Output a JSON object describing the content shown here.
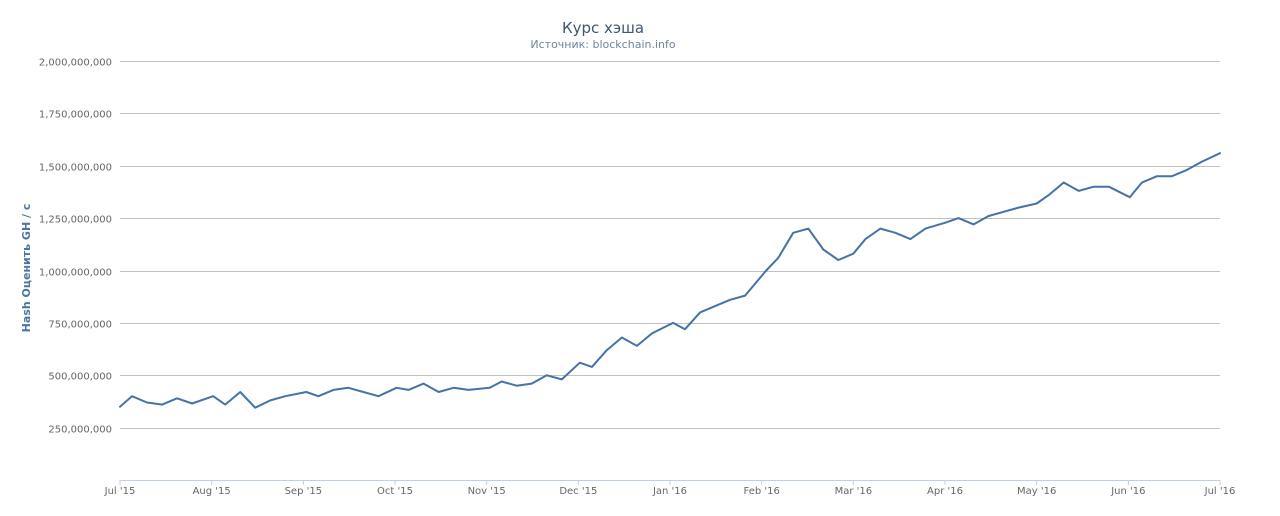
{
  "chart_data": {
    "type": "line",
    "title": "Курс хэша",
    "subtitle": "Источник: blockchain.info",
    "ylabel": "Hash Оценить GH / с",
    "xlabel": "",
    "ylim": [
      0,
      2000000000
    ],
    "y_ticks": [
      250000000,
      500000000,
      750000000,
      1000000000,
      1250000000,
      1500000000,
      1750000000,
      2000000000
    ],
    "y_tick_labels": [
      "250,000,000",
      "500,000,000",
      "750,000,000",
      "1,000,000,000",
      "1,250,000,000",
      "1,500,000,000",
      "1,750,000,000",
      "2,000,000,000"
    ],
    "x_tick_labels": [
      "Jul '15",
      "Aug '15",
      "Sep '15",
      "Oct '15",
      "Nov '15",
      "Dec '15",
      "Jan '16",
      "Feb '16",
      "Mar '16",
      "Apr '16",
      "May '16",
      "Jun '16",
      "Jul '16"
    ],
    "grid": true,
    "legend": "none",
    "series": [
      {
        "color": "#4572a7",
        "x": [
          "2015-07-01",
          "2015-07-05",
          "2015-07-10",
          "2015-07-15",
          "2015-07-20",
          "2015-07-25",
          "2015-08-01",
          "2015-08-05",
          "2015-08-10",
          "2015-08-15",
          "2015-08-20",
          "2015-08-25",
          "2015-09-01",
          "2015-09-05",
          "2015-09-10",
          "2015-09-15",
          "2015-09-20",
          "2015-09-25",
          "2015-10-01",
          "2015-10-05",
          "2015-10-10",
          "2015-10-15",
          "2015-10-20",
          "2015-10-25",
          "2015-11-01",
          "2015-11-05",
          "2015-11-10",
          "2015-11-15",
          "2015-11-20",
          "2015-11-25",
          "2015-12-01",
          "2015-12-05",
          "2015-12-10",
          "2015-12-15",
          "2015-12-20",
          "2015-12-25",
          "2016-01-01",
          "2016-01-05",
          "2016-01-10",
          "2016-01-15",
          "2016-01-20",
          "2016-01-25",
          "2016-02-01",
          "2016-02-05",
          "2016-02-10",
          "2016-02-15",
          "2016-02-20",
          "2016-02-25",
          "2016-03-01",
          "2016-03-05",
          "2016-03-10",
          "2016-03-15",
          "2016-03-20",
          "2016-03-25",
          "2016-04-01",
          "2016-04-05",
          "2016-04-10",
          "2016-04-15",
          "2016-04-20",
          "2016-04-25",
          "2016-05-01",
          "2016-05-05",
          "2016-05-10",
          "2016-05-15",
          "2016-05-20",
          "2016-05-25",
          "2016-06-01",
          "2016-06-05",
          "2016-06-10",
          "2016-06-15",
          "2016-06-20",
          "2016-06-25",
          "2016-07-01"
        ],
        "values": [
          350000000,
          400000000,
          370000000,
          360000000,
          390000000,
          365000000,
          400000000,
          360000000,
          420000000,
          345000000,
          380000000,
          400000000,
          420000000,
          400000000,
          430000000,
          440000000,
          420000000,
          400000000,
          440000000,
          430000000,
          460000000,
          420000000,
          440000000,
          430000000,
          440000000,
          470000000,
          450000000,
          460000000,
          500000000,
          480000000,
          560000000,
          540000000,
          620000000,
          680000000,
          640000000,
          700000000,
          750000000,
          720000000,
          800000000,
          830000000,
          860000000,
          880000000,
          1000000000,
          1060000000,
          1180000000,
          1200000000,
          1100000000,
          1050000000,
          1080000000,
          1150000000,
          1200000000,
          1180000000,
          1150000000,
          1200000000,
          1230000000,
          1250000000,
          1220000000,
          1260000000,
          1280000000,
          1300000000,
          1320000000,
          1360000000,
          1420000000,
          1380000000,
          1400000000,
          1400000000,
          1350000000,
          1420000000,
          1450000000,
          1450000000,
          1480000000,
          1520000000,
          1560000000
        ]
      }
    ]
  }
}
